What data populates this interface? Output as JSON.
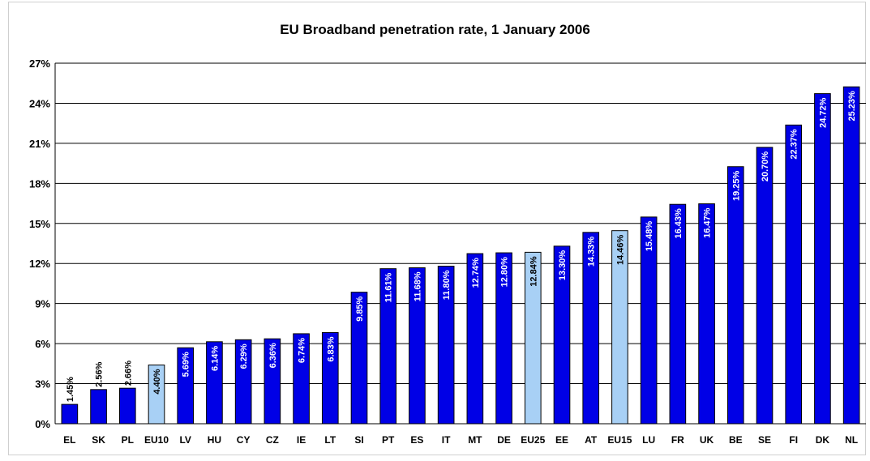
{
  "chart_data": {
    "type": "bar",
    "title": "EU Broadband penetration rate, 1 January 2006",
    "xlabel": "",
    "ylabel": "",
    "ylim": [
      0,
      27
    ],
    "yticks": [
      "0%",
      "3%",
      "6%",
      "9%",
      "12%",
      "15%",
      "18%",
      "21%",
      "24%",
      "27%"
    ],
    "ytick_values": [
      0,
      3,
      6,
      9,
      12,
      15,
      18,
      21,
      24,
      27
    ],
    "grid": true,
    "categories": [
      "EL",
      "SK",
      "PL",
      "EU10",
      "LV",
      "HU",
      "CY",
      "CZ",
      "IE",
      "LT",
      "SI",
      "PT",
      "ES",
      "IT",
      "MT",
      "DE",
      "EU25",
      "EE",
      "AT",
      "EU15",
      "LU",
      "FR",
      "UK",
      "BE",
      "SE",
      "FI",
      "DK",
      "NL"
    ],
    "values": [
      1.45,
      2.56,
      2.66,
      4.4,
      5.69,
      6.14,
      6.29,
      6.36,
      6.74,
      6.83,
      9.85,
      11.61,
      11.68,
      11.8,
      12.74,
      12.8,
      12.84,
      13.3,
      14.33,
      14.46,
      15.48,
      16.43,
      16.47,
      19.25,
      20.7,
      22.37,
      24.72,
      25.23
    ],
    "labels": [
      "1.45%",
      "2.56%",
      "2.66%",
      "4.40%",
      "5.69%",
      "6.14%",
      "6.29%",
      "6.36%",
      "6.74%",
      "6.83%",
      "9.85%",
      "11.61%",
      "11.68%",
      "11.80%",
      "12.74%",
      "12.80%",
      "12.84%",
      "13.30%",
      "14.33%",
      "14.46%",
      "15.48%",
      "16.43%",
      "16.47%",
      "19.25%",
      "20.70%",
      "22.37%",
      "24.72%",
      "25.23%"
    ],
    "highlight": [
      "EU10",
      "EU25",
      "EU15"
    ],
    "colors": {
      "bar": "#0000e6",
      "highlight": "#a8d0f5",
      "grid": "#000000"
    }
  }
}
